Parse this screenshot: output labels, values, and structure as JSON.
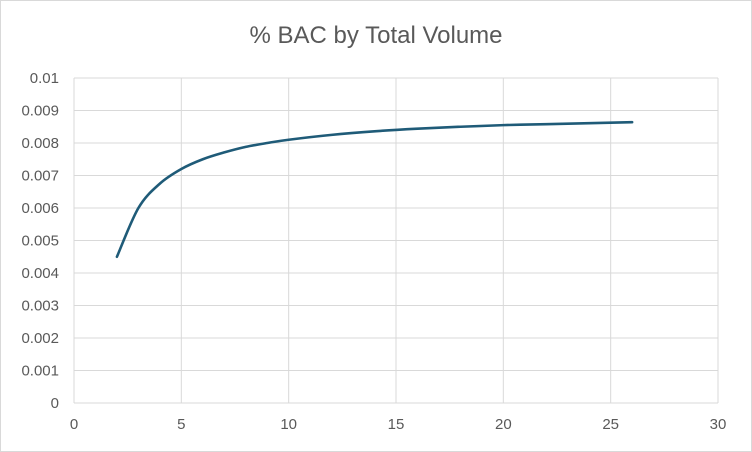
{
  "chart_data": {
    "type": "scatter",
    "title": "% BAC by Total Volume",
    "xlabel": "",
    "ylabel": "",
    "xlim": [
      0,
      30
    ],
    "ylim": [
      0,
      0.01
    ],
    "x_ticks": [
      "0",
      "5",
      "10",
      "15",
      "20",
      "25",
      "30"
    ],
    "y_ticks": [
      "0",
      "0.001",
      "0.002",
      "0.003",
      "0.004",
      "0.005",
      "0.006",
      "0.007",
      "0.008",
      "0.009",
      "0.01"
    ],
    "grid": true,
    "legend": "none",
    "series": [
      {
        "color": "#1f5b78",
        "smooth": true,
        "points": [
          [
            2,
            0.0045
          ],
          [
            3,
            0.006
          ],
          [
            4,
            0.00675
          ],
          [
            5,
            0.0072
          ],
          [
            6,
            0.0075
          ],
          [
            7,
            0.00771
          ],
          [
            8,
            0.00788
          ],
          [
            9,
            0.008
          ],
          [
            10,
            0.0081
          ],
          [
            12,
            0.00825
          ],
          [
            14,
            0.00836
          ],
          [
            16,
            0.00844
          ],
          [
            18,
            0.0085
          ],
          [
            20,
            0.00855
          ],
          [
            22,
            0.00858
          ],
          [
            24,
            0.00861
          ],
          [
            26,
            0.00864
          ]
        ]
      }
    ]
  }
}
